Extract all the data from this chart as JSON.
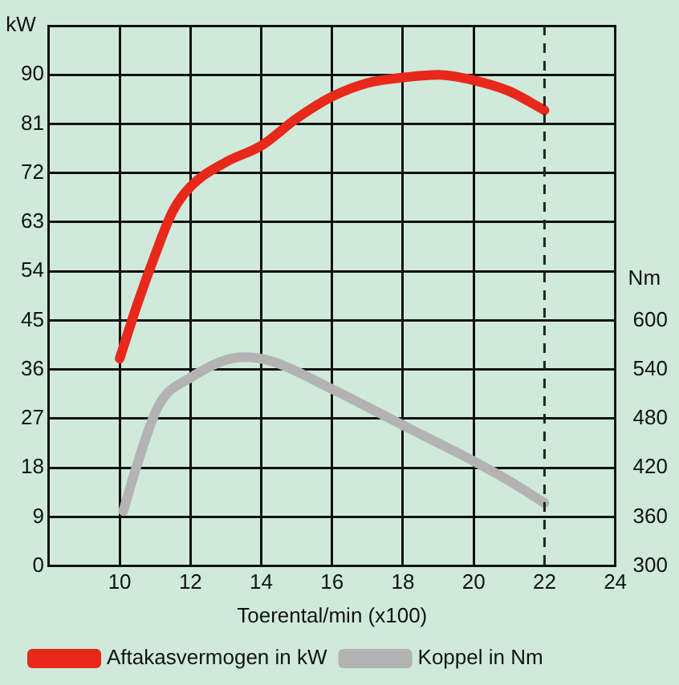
{
  "chart_data": {
    "type": "line",
    "xlabel": "Toerental/min (x100)",
    "ylabel": "kW",
    "y2label": "Nm",
    "xlim": [
      8,
      24
    ],
    "xticks": [
      10,
      12,
      14,
      16,
      18,
      20,
      22,
      24
    ],
    "ylim": [
      0,
      99
    ],
    "yticks": [
      0,
      9,
      18,
      27,
      36,
      45,
      54,
      63,
      72,
      81,
      90,
      {
        "value": 99,
        "label": null
      }
    ],
    "y2lim": [
      300,
      960
    ],
    "y2ticks": [
      300,
      360,
      420,
      480,
      540,
      600
    ],
    "series": [
      {
        "name": "Aftakasvermogen in kW",
        "color": "#e8281a",
        "x": [
          10,
          10.5,
          11,
          11.5,
          12,
          13,
          14,
          15,
          16,
          17,
          18,
          19,
          20,
          21,
          22
        ],
        "values": [
          38,
          48,
          57,
          65,
          69.5,
          74,
          77,
          82,
          86,
          88.5,
          89.5,
          90,
          89,
          87,
          83.5
        ]
      },
      {
        "name": "Koppel in Nm",
        "color": "#b3b3b3",
        "axis": "y2",
        "x": [
          10.1,
          10.5,
          11.1,
          12,
          13.5,
          14.3,
          16,
          18,
          20,
          21,
          22
        ],
        "values": [
          367,
          425,
          496,
          530,
          555,
          550,
          516,
          472,
          428,
          404,
          377
        ]
      }
    ],
    "ref_lines": [
      {
        "axis": "x",
        "value": 22,
        "line_style": "dashed",
        "color": "#222222"
      }
    ],
    "grid": true,
    "legend": "bottom",
    "marker": "none",
    "line_style": "solid"
  }
}
